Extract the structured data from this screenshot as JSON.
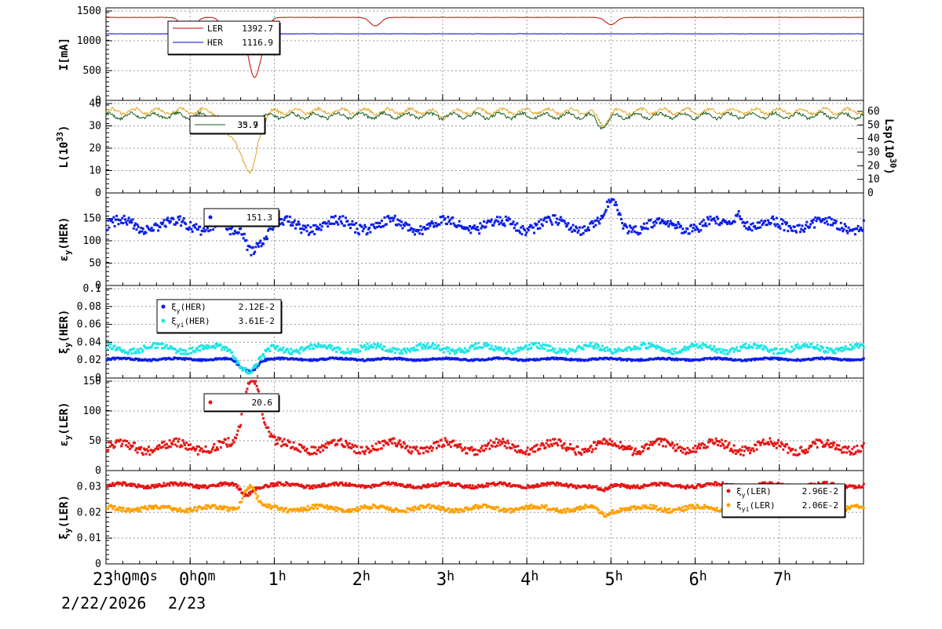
{
  "palette": {
    "ler_current": "#cc0000",
    "her_current": "#0000cc",
    "lumi_a": "#e0a020",
    "lumi_b": "#1a5c1a",
    "blue_points": "#0a1ee6",
    "cyan_points": "#1ee6e6",
    "red_points": "#e61414",
    "orange_points": "#ffa000",
    "grid": "#999999"
  },
  "time_axis": {
    "labels": [
      {
        "main": "23",
        "parts": [
          {
            "sup": "h"
          },
          {
            "t": "0"
          },
          {
            "sup": "m"
          },
          {
            "t": "0"
          },
          {
            "sup": "s"
          }
        ]
      },
      {
        "main": "0",
        "parts": [
          {
            "sup": "h"
          },
          {
            "t": "0"
          },
          {
            "sup": "m"
          }
        ]
      },
      {
        "main": "1",
        "parts": [
          {
            "sup": "h"
          }
        ]
      },
      {
        "main": "2",
        "parts": [
          {
            "sup": "h"
          }
        ]
      },
      {
        "main": "3",
        "parts": [
          {
            "sup": "h"
          }
        ]
      },
      {
        "main": "4",
        "parts": [
          {
            "sup": "h"
          }
        ]
      },
      {
        "main": "5",
        "parts": [
          {
            "sup": "h"
          }
        ]
      },
      {
        "main": "6",
        "parts": [
          {
            "sup": "h"
          }
        ]
      },
      {
        "main": "7",
        "parts": [
          {
            "sup": "h"
          }
        ]
      }
    ],
    "date_start": "2/22/2026",
    "date_next": "2/23"
  },
  "chart_data": [
    {
      "type": "line",
      "ylabel": "I[mA]",
      "ylim": [
        0,
        1500
      ],
      "yticks": [
        "0",
        "500",
        "1000",
        "1500"
      ],
      "x_range_hours": [
        23,
        32
      ],
      "grid": true,
      "legend": "top-left",
      "series": [
        {
          "name": "LER",
          "value_label": "1392.7",
          "base": 1392.7,
          "dips": [
            [
              0.95,
              1250
            ],
            [
              1.0,
              1200
            ],
            [
              1.45,
              1050
            ],
            [
              1.6,
              1150
            ],
            [
              1.75,
              530
            ],
            [
              1.85,
              1000
            ],
            [
              3.2,
              1250
            ],
            [
              6.0,
              1270
            ]
          ]
        },
        {
          "name": "HER",
          "value_label": "1116.9",
          "base": 1116.9,
          "dips": [
            [
              1.45,
              1000
            ],
            [
              1.55,
              1080
            ],
            [
              1.65,
              990
            ]
          ]
        }
      ]
    },
    {
      "type": "line",
      "ylabel_parts": [
        {
          "t": "L(10"
        },
        {
          "sup": "33"
        },
        {
          "t": ")"
        }
      ],
      "y2label_parts": [
        {
          "t": "Lsp(10"
        },
        {
          "sup": "30"
        },
        {
          "t": ")"
        }
      ],
      "ylim": [
        0,
        40
      ],
      "yticks": [
        "0",
        "10",
        "20",
        "30",
        "40"
      ],
      "y2lim": [
        0,
        60
      ],
      "y2ticks": [
        "0",
        "10",
        "20",
        "30",
        "40",
        "50",
        "60"
      ],
      "grid": true,
      "legend": "top-left",
      "series": [
        {
          "name": "",
          "value_label": "35.7",
          "base": 36.5,
          "dips": [
            [
              1.45,
              26
            ],
            [
              1.6,
              23
            ],
            [
              1.72,
              11
            ],
            [
              1.85,
              32
            ],
            [
              5.9,
              31
            ],
            [
              4.0,
              34
            ]
          ]
        },
        {
          "name": "",
          "value_label": "33.9",
          "base": 34.5,
          "dips": [
            [
              1.45,
              30
            ],
            [
              1.6,
              33
            ],
            [
              1.72,
              28
            ],
            [
              5.9,
              30
            ]
          ]
        }
      ]
    },
    {
      "type": "scatter",
      "ylabel_parts": [
        {
          "t": "ε"
        },
        {
          "sub": "y"
        },
        {
          "t": "(HER)"
        }
      ],
      "ylim": [
        0,
        200
      ],
      "yticks": [
        "0",
        "50",
        "100",
        "150"
      ],
      "grid": true,
      "legend": "top-left",
      "series": [
        {
          "name": "",
          "value_label": "151.3",
          "base": 135,
          "noise": 14,
          "dips": [
            [
              1.5,
              110
            ],
            [
              1.7,
              90
            ],
            [
              1.85,
              105
            ],
            [
              6.0,
              185
            ],
            [
              7.5,
              165
            ]
          ]
        }
      ]
    },
    {
      "type": "scatter",
      "ylabel_parts": [
        {
          "t": "ξ"
        },
        {
          "sub": "y"
        },
        {
          "t": "(HER)"
        }
      ],
      "ylim": [
        0,
        0.1
      ],
      "yticks": [
        "0",
        "0.02",
        "0.04",
        "0.06",
        "0.08",
        "0.1"
      ],
      "grid": true,
      "legend": "top-left",
      "series": [
        {
          "name_parts": [
            {
              "t": "ξ"
            },
            {
              "sub": "y"
            },
            {
              "t": "(HER)"
            }
          ],
          "value_label": "2.12E-2",
          "base": 0.021,
          "noise": 0.0012,
          "dips": [
            [
              1.6,
              0.013
            ],
            [
              1.72,
              0.01
            ]
          ]
        },
        {
          "name_parts": [
            {
              "t": "ξ"
            },
            {
              "sub": "yi"
            },
            {
              "t": "(HER)"
            }
          ],
          "value_label": "3.61E-2",
          "base": 0.033,
          "noise": 0.004,
          "dips": [
            [
              1.6,
              0.018
            ],
            [
              1.72,
              0.011
            ],
            [
              1.85,
              0.025
            ]
          ]
        }
      ]
    },
    {
      "type": "scatter",
      "ylabel_parts": [
        {
          "t": "ε"
        },
        {
          "sub": "y"
        },
        {
          "t": "(LER)"
        }
      ],
      "ylim": [
        0,
        150
      ],
      "yticks": [
        "0",
        "50",
        "100",
        "150"
      ],
      "grid": true,
      "legend": "top-left",
      "series": [
        {
          "name": "",
          "value_label": "20.6",
          "base": 40,
          "noise": 9,
          "dips": [
            [
              1.65,
              100
            ],
            [
              1.75,
              135
            ],
            [
              1.85,
              70
            ],
            [
              1.95,
              45
            ]
          ]
        }
      ]
    },
    {
      "type": "scatter",
      "ylabel_parts": [
        {
          "t": "ξ"
        },
        {
          "sub": "y"
        },
        {
          "t": "(LER)"
        }
      ],
      "ylim": [
        0,
        0.035
      ],
      "yticks": [
        "0",
        "0.01",
        "0.02",
        "0.03"
      ],
      "grid": true,
      "legend": "top-right",
      "series": [
        {
          "name_parts": [
            {
              "t": "ξ"
            },
            {
              "sub": "y"
            },
            {
              "t": "(LER)"
            }
          ],
          "value_label": "2.96E-2",
          "base": 0.0305,
          "noise": 0.0008,
          "dips": [
            [
              1.65,
              0.027
            ],
            [
              5.9,
              0.028
            ]
          ]
        },
        {
          "name_parts": [
            {
              "t": "ξ"
            },
            {
              "sub": "yi"
            },
            {
              "t": "(LER)"
            }
          ],
          "value_label": "2.06E-2",
          "base": 0.0215,
          "noise": 0.001,
          "dips": [
            [
              1.65,
              0.026
            ],
            [
              1.72,
              0.027
            ],
            [
              5.9,
              0.019
            ]
          ]
        }
      ]
    }
  ]
}
